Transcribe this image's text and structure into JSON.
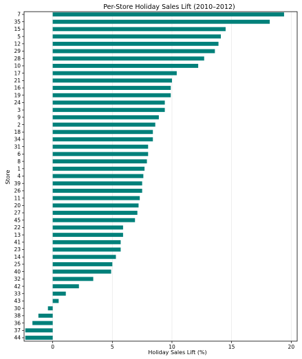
{
  "chart_data": {
    "type": "bar",
    "orientation": "horizontal",
    "title": "Per-Store Holiday Sales Lift (2010–2012)",
    "xlabel": "Holiday Sales Lift (%)",
    "ylabel": "Store",
    "xlim": [
      -2.4,
      20.5
    ],
    "xticks": [
      0,
      5,
      10,
      15,
      20
    ],
    "grid": "x",
    "bar_color": "#00807a",
    "categories": [
      "7",
      "35",
      "15",
      "5",
      "12",
      "29",
      "28",
      "10",
      "17",
      "21",
      "16",
      "19",
      "24",
      "3",
      "9",
      "2",
      "18",
      "34",
      "31",
      "6",
      "8",
      "1",
      "4",
      "39",
      "26",
      "11",
      "20",
      "27",
      "45",
      "22",
      "13",
      "41",
      "23",
      "14",
      "25",
      "40",
      "32",
      "42",
      "33",
      "43",
      "30",
      "38",
      "36",
      "37",
      "44"
    ],
    "values": [
      19.4,
      18.2,
      14.5,
      14.1,
      13.9,
      13.6,
      12.7,
      12.2,
      10.4,
      10.0,
      9.9,
      9.9,
      9.4,
      9.4,
      8.9,
      8.6,
      8.4,
      8.4,
      8.0,
      8.0,
      7.9,
      7.7,
      7.6,
      7.5,
      7.5,
      7.3,
      7.2,
      7.1,
      6.9,
      5.9,
      5.9,
      5.7,
      5.7,
      5.3,
      5.0,
      4.9,
      3.4,
      2.2,
      1.1,
      0.5,
      -0.4,
      -1.2,
      -1.7,
      -2.3,
      -2.3
    ]
  }
}
